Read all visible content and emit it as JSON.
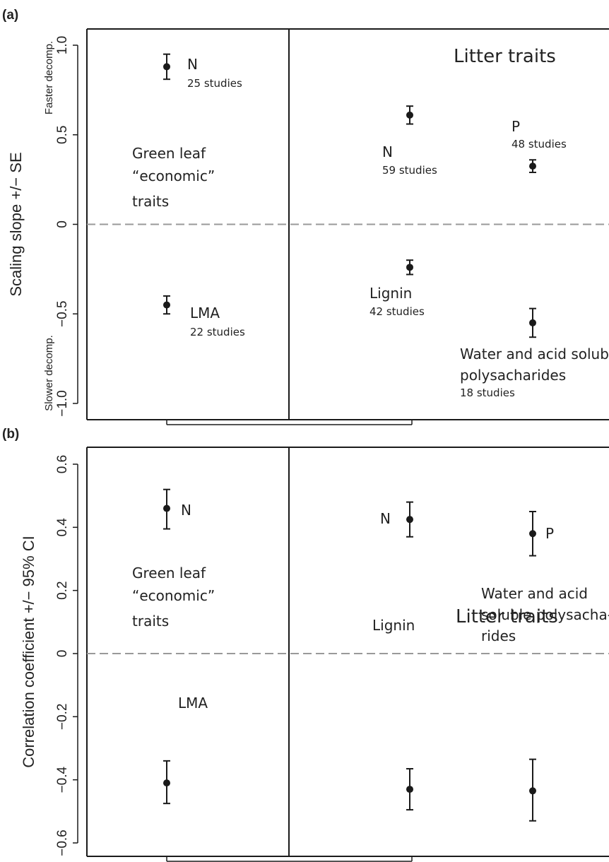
{
  "chart_data": [
    {
      "type": "scatter",
      "panel_label": "(a)",
      "ylabel": "Scaling slope +/− SE",
      "ylim": [
        -1.05,
        1.1
      ],
      "yticks": [
        "1.0",
        "0.5",
        "0",
        "−0.5",
        "−1.0"
      ],
      "ytick_values": [
        1.0,
        0.5,
        0,
        -0.5,
        -1.0
      ],
      "side_labels": {
        "top": "Faster decomp.",
        "bottom": "Slower decomp."
      },
      "reference_line": 0,
      "group_labels": [
        {
          "lines": [
            "Green leaf",
            "“economic”",
            "traits"
          ]
        },
        {
          "lines": [
            "Litter traits"
          ]
        }
      ],
      "points": [
        {
          "group": 0,
          "x": 0.5,
          "y": 0.88,
          "lo": 0.81,
          "hi": 0.95,
          "label": [
            "N",
            "25 studies"
          ]
        },
        {
          "group": 0,
          "x": 0.5,
          "y": -0.45,
          "lo": -0.5,
          "hi": -0.4,
          "label": [
            "LMA",
            "22 studies"
          ]
        },
        {
          "group": 1,
          "x": 0.4,
          "y": 0.61,
          "lo": 0.56,
          "hi": 0.66,
          "label": [
            "N",
            "59 studies"
          ]
        },
        {
          "group": 1,
          "x": 0.78,
          "y": 0.325,
          "lo": 0.29,
          "hi": 0.36,
          "label": [
            "P",
            "48 studies"
          ]
        },
        {
          "group": 1,
          "x": 0.4,
          "y": -0.24,
          "lo": -0.28,
          "hi": -0.2,
          "label": [
            "Lignin",
            "42 studies"
          ]
        },
        {
          "group": 1,
          "x": 0.78,
          "y": -0.55,
          "lo": -0.63,
          "hi": -0.47,
          "label": [
            "Water and acid soluble",
            "polysacharides",
            "18 studies"
          ]
        }
      ]
    },
    {
      "type": "scatter",
      "panel_label": "(b)",
      "ylabel": "Correlation coefficient +/− 95% CI",
      "ylim": [
        -0.65,
        0.65
      ],
      "yticks": [
        "0.6",
        "0.4",
        "0.2",
        "0",
        "−0.2",
        "−0.4",
        "−0.6"
      ],
      "ytick_values": [
        0.6,
        0.4,
        0.2,
        0,
        -0.2,
        -0.4,
        -0.6
      ],
      "reference_line": 0,
      "group_labels": [
        {
          "lines": [
            "Green leaf",
            "“economic”",
            "traits"
          ]
        },
        {
          "lines": [
            "Litter traits"
          ]
        }
      ],
      "points": [
        {
          "group": 0,
          "x": 0.5,
          "y": 0.46,
          "lo": 0.395,
          "hi": 0.52,
          "label": [
            "N"
          ]
        },
        {
          "group": 0,
          "x": 0.5,
          "y": -0.41,
          "lo": -0.475,
          "hi": -0.34,
          "label": [
            "LMA"
          ]
        },
        {
          "group": 1,
          "x": 0.4,
          "y": 0.425,
          "lo": 0.37,
          "hi": 0.48,
          "label": [
            "N"
          ]
        },
        {
          "group": 1,
          "x": 0.78,
          "y": 0.38,
          "lo": 0.31,
          "hi": 0.45,
          "label": [
            "P"
          ]
        },
        {
          "group": 1,
          "x": 0.4,
          "y": -0.43,
          "lo": -0.495,
          "hi": -0.365,
          "label": [
            "Lignin"
          ]
        },
        {
          "group": 1,
          "x": 0.78,
          "y": -0.435,
          "lo": -0.53,
          "hi": -0.335,
          "label": [
            "Water and acid",
            "soluble polysacha-",
            "rides"
          ]
        }
      ]
    }
  ]
}
